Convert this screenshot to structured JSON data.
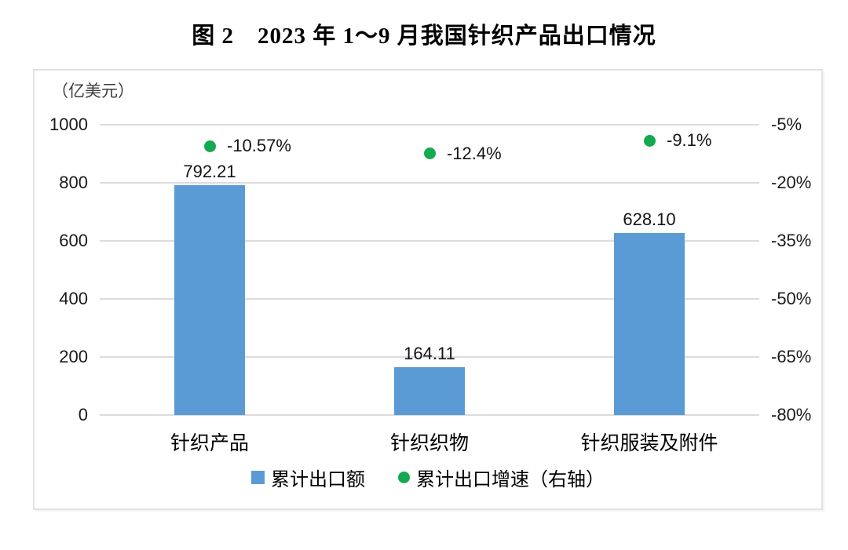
{
  "title": "图 2　2023 年 1～9 月我国针织产品出口情况",
  "colors": {
    "bar": "#5B9BD5",
    "dot": "#14AA50",
    "gridline": "#dcdcdc",
    "border": "#e3e3e3"
  },
  "chart_data": {
    "type": "bar",
    "subtype": "combo: bar (left axis) + scatter points (right axis)",
    "title": "图 2　2023 年 1～9 月我国针织产品出口情况",
    "categories": [
      "针织产品",
      "针织织物",
      "针织服装及附件"
    ],
    "series": [
      {
        "name": "累计出口额",
        "type": "bar",
        "axis": "left",
        "color": "#5B9BD5",
        "values": [
          792.21,
          164.11,
          628.1
        ],
        "labels": [
          "792.21",
          "164.11",
          "628.10"
        ]
      },
      {
        "name": "累计出口增速（右轴）",
        "type": "scatter",
        "axis": "right",
        "color": "#14AA50",
        "values": [
          -10.57,
          -12.4,
          -9.1
        ],
        "labels": [
          "-10.57%",
          "-12.4%",
          "-9.1%"
        ]
      }
    ],
    "left_axis": {
      "unit_label": "（亿美元）",
      "min": 0,
      "max": 1000,
      "ticks": [
        "1000",
        "800",
        "600",
        "400",
        "200",
        "0"
      ]
    },
    "right_axis": {
      "min": -80,
      "max": -5,
      "ticks": [
        "-5%",
        "-20%",
        "-35%",
        "-50%",
        "-65%",
        "-80%"
      ]
    },
    "grid": true,
    "legend_position": "bottom",
    "legend": [
      "累计出口额",
      "累计出口增速（右轴）"
    ]
  }
}
